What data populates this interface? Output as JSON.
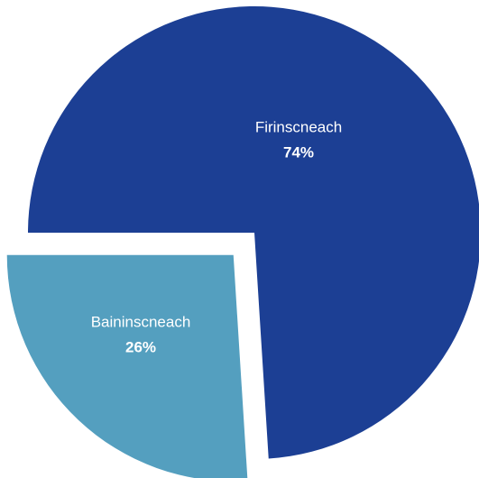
{
  "chart_data": {
    "type": "pie",
    "categories": [
      "Firinscneach",
      "Baininscneach"
    ],
    "values": [
      74,
      26
    ],
    "value_labels": [
      "74%",
      "26%"
    ],
    "colors": [
      "#1c3f94",
      "#549fbf"
    ],
    "exploded": [
      false,
      true
    ]
  }
}
